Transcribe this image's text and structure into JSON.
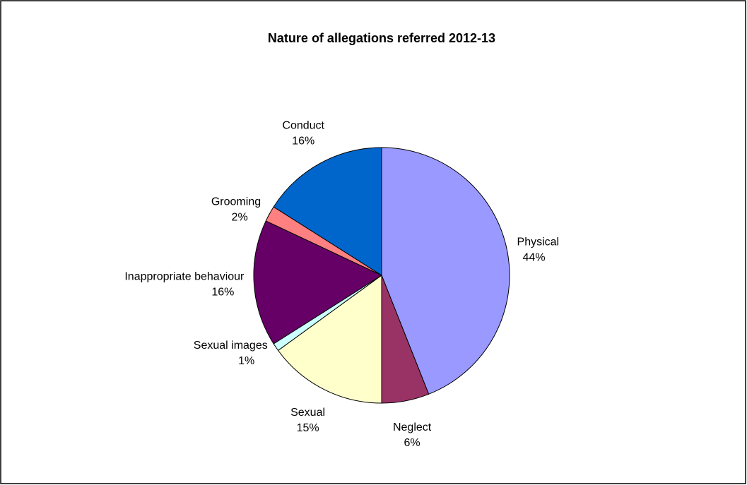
{
  "chart_data": {
    "type": "pie",
    "title": "Nature of allegations referred 2012-13",
    "categories": [
      "Physical",
      "Neglect",
      "Sexual",
      "Sexual images",
      "Inappropriate behaviour",
      "Grooming",
      "Conduct"
    ],
    "values": [
      44,
      6,
      15,
      1,
      16,
      2,
      16
    ],
    "value_labels": [
      "44%",
      "6%",
      "15%",
      "1%",
      "16%",
      "2%",
      "16%"
    ],
    "colors": [
      "#9999ff",
      "#993366",
      "#ffffcc",
      "#ccffff",
      "#660066",
      "#ff8080",
      "#0066cc"
    ]
  }
}
